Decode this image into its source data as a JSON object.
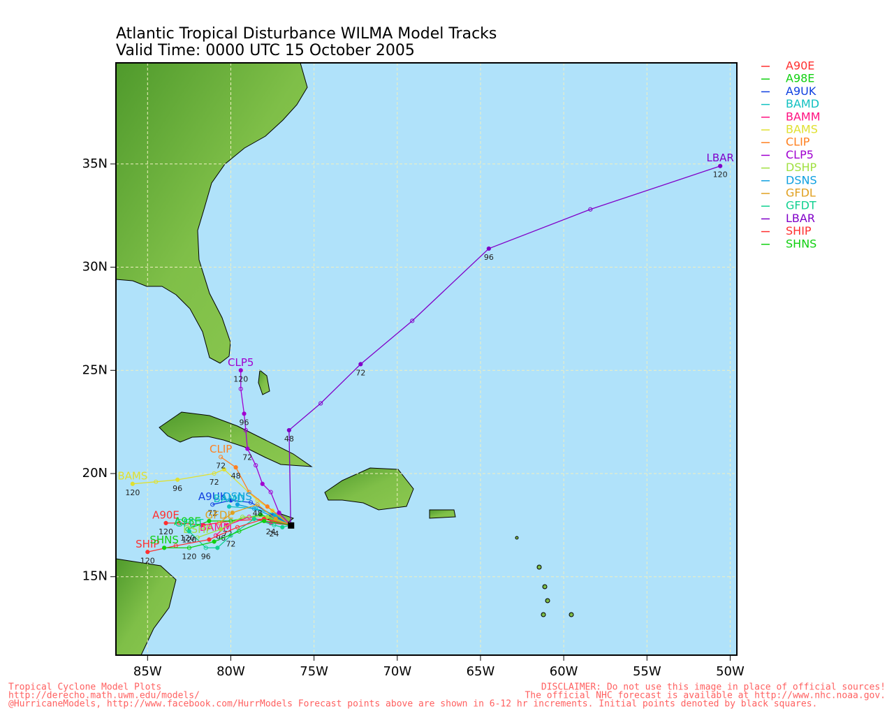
{
  "chart_data": {
    "type": "map",
    "title": "Atlantic Tropical Disturbance WILMA Model Tracks",
    "subtitle": "Valid Time: 0000 UTC 15 October 2005",
    "xlim": [
      -86.9,
      -49.6
    ],
    "ylim": [
      11.2,
      39.9
    ],
    "xticks": [
      {
        "value": -85,
        "label": "85W"
      },
      {
        "value": -80,
        "label": "80W"
      },
      {
        "value": -75,
        "label": "75W"
      },
      {
        "value": -70,
        "label": "70W"
      },
      {
        "value": -65,
        "label": "65W"
      },
      {
        "value": -60,
        "label": "60W"
      },
      {
        "value": -55,
        "label": "55W"
      },
      {
        "value": -50,
        "label": "50W"
      }
    ],
    "yticks": [
      {
        "value": 15,
        "label": "15N"
      },
      {
        "value": 20,
        "label": "20N"
      },
      {
        "value": 25,
        "label": "25N"
      },
      {
        "value": 30,
        "label": "30N"
      },
      {
        "value": 35,
        "label": "35N"
      }
    ],
    "grid": true,
    "series": [
      {
        "name": "A90E",
        "color": "#ff3030",
        "lon": [
          -76.4,
          -78.0,
          -80.0,
          -81.7,
          -83.1,
          -83.9
        ],
        "lat": [
          17.5,
          17.8,
          17.7,
          17.5,
          17.6,
          17.6
        ],
        "hours": [
          null,
          null,
          null,
          null,
          null,
          120
        ]
      },
      {
        "name": "A98E",
        "color": "#10d010",
        "lon": [
          -76.4,
          -78.2,
          -80.0,
          -81.3,
          -82.6
        ],
        "lat": [
          17.5,
          18.0,
          17.7,
          17.7,
          17.3
        ],
        "hours": [
          null,
          null,
          null,
          null,
          120
        ]
      },
      {
        "name": "A9UK",
        "color": "#1040e0",
        "lon": [
          -76.4,
          -77.5,
          -78.8,
          -80.0,
          -81.1
        ],
        "lat": [
          17.5,
          18.0,
          18.6,
          18.7,
          18.5
        ],
        "hours": [
          null,
          null,
          null,
          null,
          72
        ]
      },
      {
        "name": "BAMD",
        "color": "#10c0c0",
        "lon": [
          -76.4,
          -77.3,
          -78.5,
          -80.1
        ],
        "lat": [
          17.5,
          18.0,
          18.3,
          18.4
        ],
        "hours": [
          null,
          null,
          null,
          null
        ]
      },
      {
        "name": "BAMM",
        "color": "#ff1080",
        "lon": [
          -76.4,
          -77.6,
          -78.9,
          -80.2,
          -80.9
        ],
        "lat": [
          17.5,
          17.6,
          17.9,
          17.5,
          17.0
        ],
        "hours": [
          null,
          24,
          null,
          72,
          null
        ]
      },
      {
        "name": "BAMS",
        "color": "#e0e030",
        "lon": [
          -76.4,
          -77.5,
          -78.4,
          -80.4,
          -81.0,
          -83.2,
          -84.5,
          -85.9
        ],
        "lat": [
          17.5,
          18.2,
          18.7,
          20.2,
          20.0,
          19.7,
          19.6,
          19.5
        ],
        "hours": [
          null,
          null,
          null,
          null,
          72,
          96,
          null,
          120
        ]
      },
      {
        "name": "CLIP",
        "color": "#ff8020",
        "lon": [
          -76.4,
          -77.8,
          -78.9,
          -79.7,
          -80.6
        ],
        "lat": [
          17.5,
          18.4,
          19.1,
          20.3,
          20.8
        ],
        "hours": [
          null,
          null,
          null,
          48,
          72
        ]
      },
      {
        "name": "CLP5",
        "color": "#a000d0",
        "lon": [
          -76.4,
          -77.1,
          -77.6,
          -78.1,
          -78.5,
          -79.0,
          -79.1,
          -79.2,
          -79.4,
          -79.4
        ],
        "lat": [
          17.5,
          18.1,
          19.1,
          19.5,
          20.4,
          21.2,
          22.1,
          22.9,
          24.1,
          25.0
        ],
        "hours": [
          null,
          null,
          null,
          null,
          null,
          72,
          null,
          96,
          null,
          120
        ]
      },
      {
        "name": "DSHP",
        "color": "#a0e040",
        "lon": [
          -76.4,
          -77.8,
          -79.3,
          -80.6,
          -82.0
        ],
        "lat": [
          17.5,
          17.9,
          17.9,
          17.3,
          16.9
        ],
        "hours": [
          null,
          null,
          null,
          96,
          null
        ]
      },
      {
        "name": "DSNS",
        "color": "#10a0e0",
        "lon": [
          -76.4,
          -77.4,
          -78.6,
          -79.6
        ],
        "lat": [
          17.5,
          17.9,
          18.3,
          18.5
        ],
        "hours": [
          null,
          null,
          null,
          null
        ]
      },
      {
        "name": "GFDL",
        "color": "#e0a020",
        "lon": [
          -76.4,
          -77.3,
          -78.4,
          -79.9,
          -80.7
        ],
        "lat": [
          17.5,
          17.8,
          18.5,
          18.1,
          17.6
        ],
        "hours": [
          null,
          null,
          48,
          null,
          null
        ]
      },
      {
        "name": "GFDT",
        "color": "#10d090",
        "lon": [
          -76.4,
          -76.9,
          -77.4,
          -78.6,
          -80.0,
          -80.8,
          -81.5,
          -82.5
        ],
        "lat": [
          17.5,
          17.4,
          17.5,
          17.8,
          17.0,
          16.4,
          16.4,
          17.2
        ],
        "hours": [
          null,
          null,
          24,
          null,
          72,
          null,
          96,
          120
        ]
      },
      {
        "name": "LBAR",
        "color": "#8000c8",
        "lon": [
          -76.4,
          -76.5,
          -74.6,
          -72.2,
          -69.1,
          -64.5,
          -58.4,
          -50.6
        ],
        "lat": [
          17.5,
          22.1,
          23.4,
          25.3,
          27.4,
          30.9,
          32.8,
          34.9
        ],
        "hours": [
          null,
          48,
          null,
          72,
          null,
          96,
          null,
          120
        ]
      },
      {
        "name": "SHIP",
        "color": "#ff3030",
        "lon": [
          -76.4,
          -78.0,
          -79.6,
          -81.3,
          -83.3,
          -85.0
        ],
        "lat": [
          17.5,
          17.8,
          17.4,
          16.8,
          16.5,
          16.2
        ],
        "hours": [
          null,
          null,
          null,
          null,
          null,
          120
        ]
      },
      {
        "name": "SHNS",
        "color": "#10d010",
        "lon": [
          -76.4,
          -78.0,
          -79.5,
          -81.0,
          -82.5,
          -84.0
        ],
        "lat": [
          17.5,
          17.7,
          17.2,
          16.7,
          16.4,
          16.4
        ],
        "hours": [
          null,
          null,
          null,
          null,
          120,
          null
        ]
      }
    ],
    "footer_left": [
      "Tropical Cyclone Model Plots",
      "http://derecho.math.uwm.edu/models/",
      "@HurricaneModels, http://www.facebook.com/HurrModels  Forecast points above are shown in 6-12 hr increments. Initial points denoted by black squares."
    ],
    "footer_right": [
      "DISCLAIMER: Do not use this image in place of official sources!",
      "The official NHC forecast is available at http://www.nhc.noaa.gov."
    ]
  }
}
